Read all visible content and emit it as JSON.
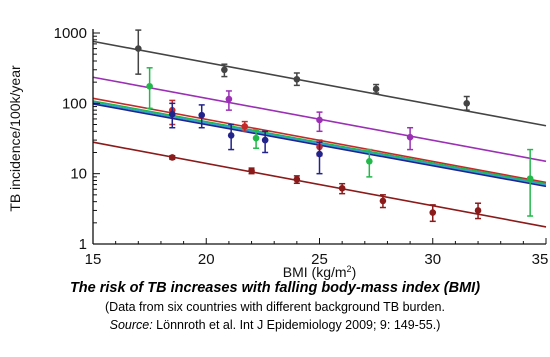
{
  "chart_data": {
    "type": "scatter",
    "xlabel": "BMI (kg/m",
    "xlabel_sup": "2",
    "xlabel_end": ")",
    "ylabel": "TB incidence/100k/year",
    "xlim": [
      15,
      35
    ],
    "ylim": [
      1,
      1000
    ],
    "log_y": true,
    "x_ticks": [
      "15",
      "20",
      "25",
      "30",
      "35"
    ],
    "y_ticks": [
      "1",
      "10",
      "100",
      "1000"
    ],
    "grid": false,
    "series": [
      {
        "color": "#444444",
        "points": [
          {
            "x": 17,
            "y": 600,
            "lo": 260,
            "hi": 1100
          },
          {
            "x": 20.8,
            "y": 300,
            "lo": 240,
            "hi": 360
          },
          {
            "x": 24,
            "y": 220,
            "lo": 180,
            "hi": 270
          },
          {
            "x": 27.5,
            "y": 160,
            "lo": 140,
            "hi": 185
          },
          {
            "x": 31.5,
            "y": 100,
            "lo": 80,
            "hi": 125
          }
        ],
        "line": [
          [
            15,
            760
          ],
          [
            35,
            48
          ]
        ]
      },
      {
        "color": "#9b30b5",
        "points": [
          {
            "x": 21,
            "y": 115,
            "lo": 80,
            "hi": 150
          },
          {
            "x": 25,
            "y": 58,
            "lo": 40,
            "hi": 75
          },
          {
            "x": 29,
            "y": 33,
            "lo": 22,
            "hi": 45
          }
        ],
        "line": [
          [
            15,
            235
          ],
          [
            35,
            15
          ]
        ]
      },
      {
        "color": "#c42a2a",
        "points": [
          {
            "x": 18.5,
            "y": 80,
            "lo": 50,
            "hi": 110
          },
          {
            "x": 21.7,
            "y": 47,
            "lo": 40,
            "hi": 55
          },
          {
            "x": 25,
            "y": 24,
            "lo": 18,
            "hi": 30
          }
        ],
        "line": [
          [
            15,
            118
          ],
          [
            35,
            7.5
          ]
        ]
      },
      {
        "color": "#22b84a",
        "points": [
          {
            "x": 17.5,
            "y": 175,
            "lo": 85,
            "hi": 320
          },
          {
            "x": 22.2,
            "y": 32,
            "lo": 23,
            "hi": 42
          },
          {
            "x": 27.2,
            "y": 15,
            "lo": 9,
            "hi": 22
          },
          {
            "x": 34.3,
            "y": 8.5,
            "lo": 2.5,
            "hi": 22
          }
        ],
        "line": [
          [
            15,
            108
          ],
          [
            35,
            7.2
          ]
        ]
      },
      {
        "color": "#2f9fd6",
        "points": [],
        "line": [
          [
            15,
            103
          ],
          [
            35,
            6.9
          ]
        ]
      },
      {
        "color": "#23238c",
        "points": [
          {
            "x": 18.5,
            "y": 70,
            "lo": 45,
            "hi": 100
          },
          {
            "x": 19.8,
            "y": 68,
            "lo": 45,
            "hi": 95
          },
          {
            "x": 21.1,
            "y": 35,
            "lo": 22,
            "hi": 50
          },
          {
            "x": 22.6,
            "y": 30,
            "lo": 20,
            "hi": 40
          },
          {
            "x": 25,
            "y": 19,
            "lo": 10,
            "hi": 28
          }
        ],
        "line": [
          [
            15,
            98
          ],
          [
            35,
            6.6
          ]
        ]
      },
      {
        "color": "#8b1a1a",
        "points": [
          {
            "x": 18.5,
            "y": 17,
            "lo": 16,
            "hi": 18
          },
          {
            "x": 22,
            "y": 11,
            "lo": 10,
            "hi": 12
          },
          {
            "x": 24,
            "y": 8.3,
            "lo": 7.3,
            "hi": 9.3
          },
          {
            "x": 26,
            "y": 6.2,
            "lo": 5.2,
            "hi": 7.2
          },
          {
            "x": 27.8,
            "y": 4.1,
            "lo": 3.3,
            "hi": 5
          },
          {
            "x": 30,
            "y": 2.8,
            "lo": 2.1,
            "hi": 3.6
          },
          {
            "x": 32,
            "y": 3,
            "lo": 2.3,
            "hi": 3.8
          }
        ],
        "line": [
          [
            15,
            28
          ],
          [
            35,
            1.75
          ]
        ]
      }
    ]
  },
  "caption": {
    "title": "The risk of TB increases with falling body-mass index (BMI)",
    "subtitle": "(Data from six countries with different background TB burden.",
    "source_label": "Source:",
    "source_text": " Lönnroth et al. Int J Epidemiology 2009; 9: 149-55.)"
  }
}
